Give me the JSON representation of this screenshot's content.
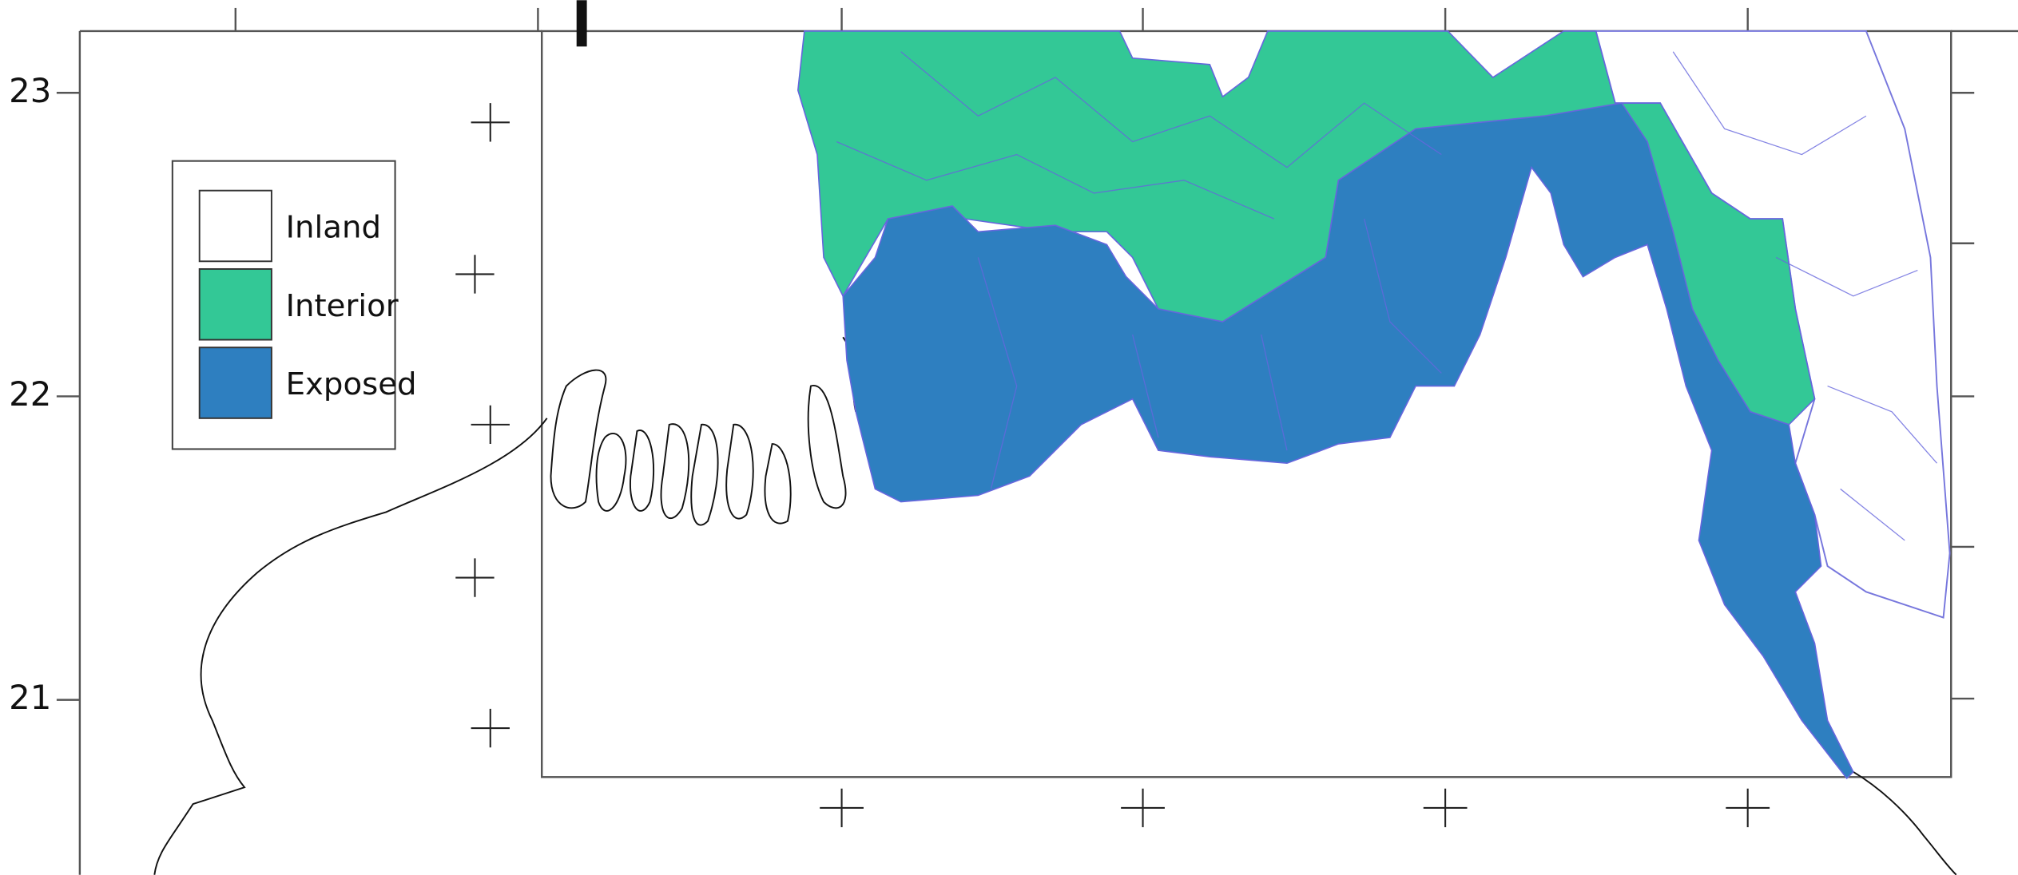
{
  "y_axis": {
    "ticks": [
      23,
      22,
      21
    ]
  },
  "legend": {
    "items": [
      {
        "label": "Inland",
        "color": "#ffffff"
      },
      {
        "label": "Interior",
        "color": "#33c896"
      },
      {
        "label": "Exposed",
        "color": "#2e7fc0"
      }
    ]
  }
}
